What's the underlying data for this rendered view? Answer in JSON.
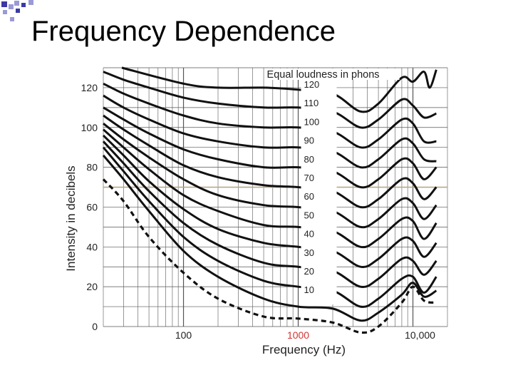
{
  "slide": {
    "title": "Frequency Dependence",
    "colors": {
      "accent": "#3a3aa6",
      "accent_light": "#9a9ad6",
      "grid": "#555555",
      "gridline_highlight": "#b8a98a"
    }
  },
  "chart_data": {
    "type": "line",
    "title": "",
    "xlabel": "Frequency (Hz)",
    "ylabel": "Intensity in decibels",
    "x_scale": "log",
    "xlim": [
      20,
      20000
    ],
    "ylim": [
      0,
      130
    ],
    "x_tick_labels": [
      {
        "value": 100,
        "label": "100"
      },
      {
        "value": 1000,
        "label": "1000"
      },
      {
        "value": 10000,
        "label": "10,000"
      }
    ],
    "y_ticks": [
      0,
      20,
      40,
      60,
      80,
      100,
      120
    ],
    "grid": true,
    "legend": {
      "title": "Equal loudness in phons",
      "placement": "center-vertical column at 1000 Hz",
      "entries": [
        "120",
        "110",
        "100",
        "90",
        "80",
        "70",
        "60",
        "50",
        "40",
        "30",
        "20",
        "10"
      ]
    },
    "threshold_curve": {
      "style": "dashed",
      "x": [
        20,
        30,
        50,
        100,
        200,
        500,
        1000,
        2000,
        3500,
        5000,
        8000,
        10000,
        12500,
        16000
      ],
      "y": [
        74,
        63,
        45,
        27,
        14,
        5,
        4,
        2,
        -3,
        0,
        12,
        20,
        13,
        12
      ]
    },
    "series": [
      {
        "name": "120",
        "x": [
          29,
          100,
          200,
          500,
          1000,
          2000,
          3500,
          5000,
          8000,
          10000,
          12500,
          14000,
          16000
        ],
        "y": [
          130,
          122,
          120,
          120,
          119,
          117,
          108,
          112,
          125,
          123,
          128,
          120,
          129
        ]
      },
      {
        "name": "110",
        "x": [
          20,
          30,
          50,
          100,
          200,
          500,
          1000,
          2000,
          3500,
          5000,
          8000,
          10000,
          12500,
          16000
        ],
        "y": [
          128,
          124,
          120,
          115,
          112,
          110,
          110,
          108,
          100,
          104,
          114,
          111,
          105,
          107
        ]
      },
      {
        "name": "100",
        "x": [
          20,
          30,
          50,
          100,
          200,
          500,
          1000,
          2000,
          3500,
          5000,
          8000,
          10000,
          12500,
          16000
        ],
        "y": [
          122,
          117,
          112,
          106,
          102,
          100,
          100,
          98,
          90,
          94,
          104,
          102,
          93,
          93
        ]
      },
      {
        "name": "90",
        "x": [
          20,
          30,
          50,
          100,
          200,
          500,
          1000,
          2000,
          3500,
          5000,
          8000,
          10000,
          12500,
          16000
        ],
        "y": [
          116,
          110,
          104,
          97,
          93,
          90,
          90,
          88,
          80,
          84,
          94,
          92,
          84,
          83
        ]
      },
      {
        "name": "80",
        "x": [
          20,
          30,
          50,
          100,
          200,
          500,
          1000,
          2000,
          3500,
          5000,
          8000,
          10000,
          12500,
          16000
        ],
        "y": [
          110,
          104,
          97,
          89,
          84,
          80,
          80,
          78,
          70,
          74,
          84,
          82,
          74,
          80
        ]
      },
      {
        "name": "70",
        "x": [
          20,
          30,
          50,
          100,
          200,
          500,
          1000,
          2000,
          3500,
          5000,
          8000,
          10000,
          12500,
          16000
        ],
        "y": [
          106,
          99,
          91,
          81,
          75,
          71,
          70,
          68,
          60,
          64,
          74,
          72,
          64,
          70
        ]
      },
      {
        "name": "60",
        "x": [
          20,
          30,
          50,
          100,
          200,
          500,
          1000,
          2000,
          3500,
          5000,
          8000,
          10000,
          12500,
          16000
        ],
        "y": [
          102,
          94,
          85,
          74,
          66,
          61,
          60,
          58,
          50,
          54,
          64,
          62,
          54,
          61
        ]
      },
      {
        "name": "50",
        "x": [
          20,
          30,
          50,
          100,
          200,
          500,
          1000,
          2000,
          3500,
          5000,
          8000,
          10000,
          12500,
          16000
        ],
        "y": [
          99,
          90,
          79,
          66,
          58,
          51,
          50,
          48,
          40,
          44,
          54,
          53,
          44,
          52
        ]
      },
      {
        "name": "40",
        "x": [
          20,
          30,
          50,
          100,
          200,
          500,
          1000,
          2000,
          3500,
          5000,
          8000,
          10000,
          12500,
          16000
        ],
        "y": [
          96,
          86,
          73,
          59,
          49,
          42,
          40,
          38,
          30,
          34,
          44,
          43,
          35,
          42
        ]
      },
      {
        "name": "30",
        "x": [
          20,
          30,
          50,
          100,
          200,
          500,
          1000,
          2000,
          3500,
          5000,
          8000,
          10000,
          12500,
          16000
        ],
        "y": [
          93,
          82,
          68,
          52,
          41,
          32,
          30,
          28,
          20,
          24,
          34,
          33,
          26,
          33
        ]
      },
      {
        "name": "20",
        "x": [
          20,
          30,
          50,
          100,
          200,
          500,
          1000,
          2000,
          3500,
          5000,
          8000,
          10000,
          12500,
          16000
        ],
        "y": [
          90,
          78,
          63,
          45,
          33,
          23,
          20,
          18,
          10,
          14,
          24,
          25,
          17,
          25
        ]
      },
      {
        "name": "10",
        "x": [
          20,
          30,
          50,
          100,
          200,
          500,
          1000,
          2000,
          3500,
          5000,
          8000,
          10000,
          12500,
          16000
        ],
        "y": [
          86,
          74,
          58,
          38,
          25,
          14,
          10,
          9,
          3,
          7,
          16,
          22,
          15,
          18
        ]
      }
    ]
  }
}
